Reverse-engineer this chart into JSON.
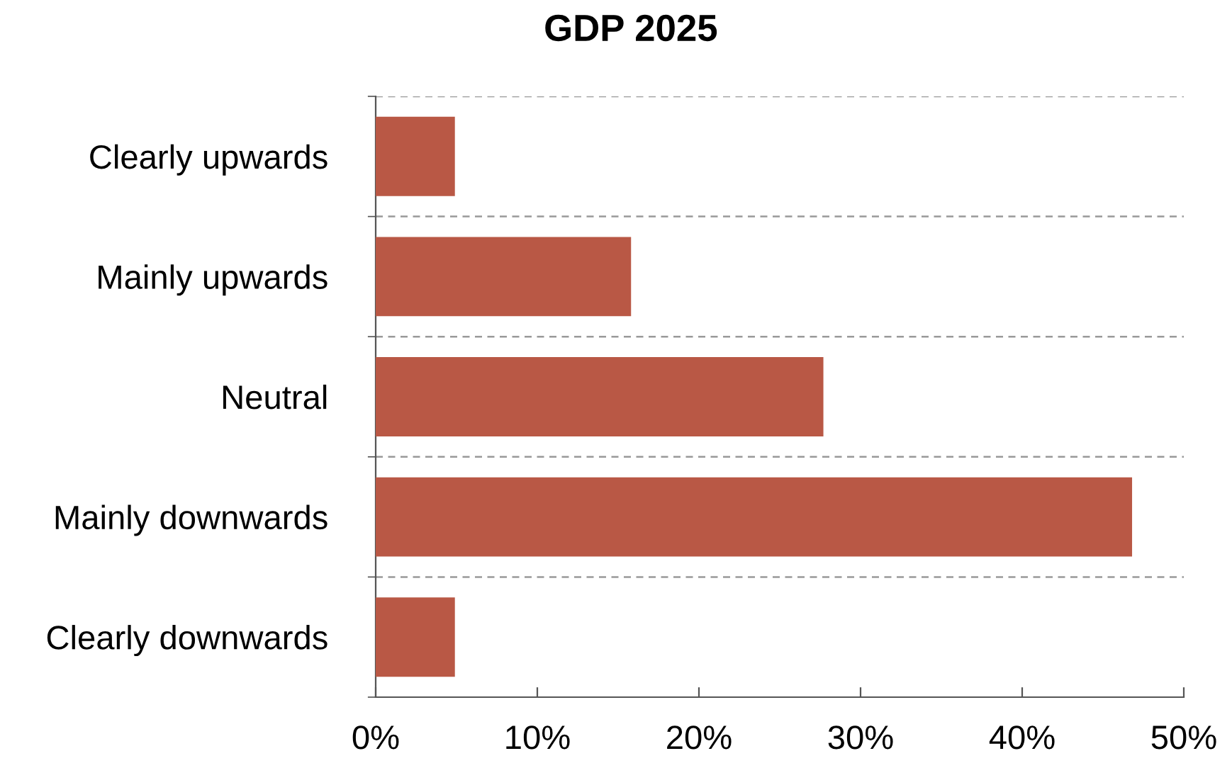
{
  "chart_data": {
    "type": "bar",
    "title": "GDP 2025",
    "orientation": "horizontal",
    "categories": [
      "Clearly upwards",
      "Mainly upwards",
      "Neutral",
      "Mainly downwards",
      "Clearly downwards"
    ],
    "values": [
      4.9,
      15.8,
      27.7,
      46.8,
      4.9
    ],
    "color": "#b95845",
    "xlim": [
      0,
      50
    ],
    "xticks": [
      {
        "value": 0,
        "label": "0%"
      },
      {
        "value": 10,
        "label": "10%"
      },
      {
        "value": 20,
        "label": "20%"
      },
      {
        "value": 30,
        "label": "30%"
      },
      {
        "value": 40,
        "label": "40%"
      },
      {
        "value": 50,
        "label": "50%"
      }
    ],
    "grid": "y"
  }
}
